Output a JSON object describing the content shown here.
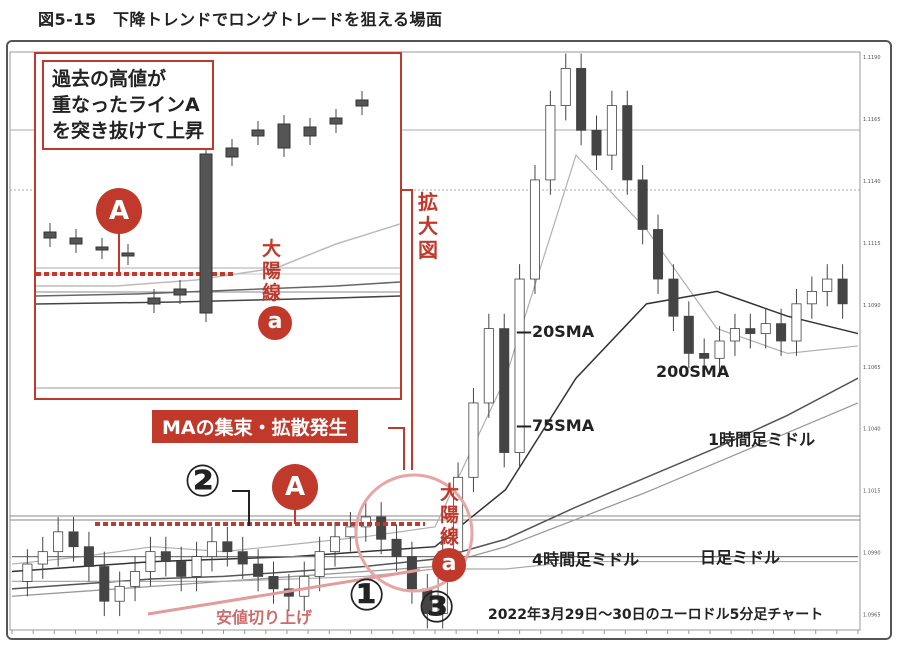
{
  "figure_title": "図5-15　下降トレンドでロングトレードを狙える場面",
  "callout_text": [
    "過去の高値が",
    "重なったラインA",
    "を突き抜けて上昇"
  ],
  "zoom_label": "拡大図",
  "ma_label": "MAの集束・拡散発生",
  "big_candle_label": "大陽線",
  "low_rise_label": "安値切り上げ",
  "marker_a": "A",
  "marker_small_a": "a",
  "marker_1": "①",
  "marker_2": "②",
  "marker_3": "③",
  "line_labels": {
    "sma20": "20SMA",
    "sma75": "75SMA",
    "sma200": "200SMA",
    "mid_1h": "1時間足ミドル",
    "mid_4h": "4時間足ミドル",
    "mid_daily": "日足ミドル"
  },
  "caption": "2022年3月29日～30日のユーロドル5分足チャート",
  "colors": {
    "accent_red": "#c0392b",
    "candle": "#4a4a4a",
    "grid": "#c8c8c8"
  },
  "chart_data": {
    "type": "line",
    "title": "",
    "xlabel": "",
    "ylabel": "",
    "x": [
      0,
      10,
      20,
      30,
      40,
      50,
      60,
      70,
      80,
      90,
      100,
      110,
      120
    ],
    "ylim": [
      1.096,
      1.119
    ],
    "series": [
      {
        "name": "20SMA",
        "values": [
          1.0985,
          1.0988,
          1.0992,
          1.099,
          1.0993,
          1.0996,
          1.1,
          1.106,
          1.115,
          1.112,
          1.108,
          1.107,
          1.1073
        ]
      },
      {
        "name": "75SMA",
        "values": [
          1.0982,
          1.0984,
          1.0986,
          1.0987,
          1.0988,
          1.099,
          1.0992,
          1.1015,
          1.106,
          1.109,
          1.1095,
          1.1085,
          1.1078
        ]
      },
      {
        "name": "200SMA",
        "values": [
          1.0975,
          1.0977,
          1.0979,
          1.098,
          1.0982,
          1.0984,
          1.0987,
          1.0995,
          1.1008,
          1.102,
          1.1032,
          1.1045,
          1.106
        ]
      },
      {
        "name": "1時間足ミドル",
        "values": [
          1.0972,
          1.0974,
          1.0976,
          1.0978,
          1.098,
          1.0982,
          1.0984,
          1.0992,
          1.1003,
          1.1014,
          1.1026,
          1.1038,
          1.105
        ]
      },
      {
        "name": "4時間足ミドル",
        "values": [
          1.0978,
          1.0978,
          1.0978,
          1.0978,
          1.0979,
          1.098,
          1.0983,
          1.0983,
          1.0986,
          1.0986,
          1.0986,
          1.0986,
          1.0986
        ]
      },
      {
        "name": "日足ミドル",
        "values": [
          1.0988,
          1.0988,
          1.0988,
          1.0988,
          1.0988,
          1.0988,
          1.0988,
          1.0988,
          1.0988,
          1.0988,
          1.0988,
          1.0988,
          1.0988
        ]
      }
    ],
    "price_path": [
      1.0978,
      1.0985,
      1.099,
      1.0998,
      1.0992,
      1.0984,
      1.097,
      1.0976,
      1.0982,
      1.099,
      1.0986,
      1.098,
      1.0988,
      1.0994,
      1.099,
      1.0985,
      1.098,
      1.0975,
      1.0972,
      1.098,
      1.099,
      1.0996,
      1.1,
      1.1004,
      1.0995,
      1.0988,
      1.0975,
      1.0965,
      1.099,
      1.102,
      1.105,
      1.108,
      1.103,
      1.11,
      1.114,
      1.117,
      1.1185,
      1.116,
      1.115,
      1.117,
      1.114,
      1.112,
      1.11,
      1.1085,
      1.107,
      1.1068,
      1.1075,
      1.108,
      1.1078,
      1.1082,
      1.1075,
      1.109,
      1.1095,
      1.11,
      1.109
    ],
    "y_tick_labels": [
      "1.1190",
      "1.1165",
      "1.1140",
      "1.1115",
      "1.1090",
      "1.1065",
      "1.1040",
      "1.1015",
      "1.0990",
      "1.0965"
    ],
    "annotations": [
      "A",
      "a",
      "①",
      "②",
      "③",
      "大陽線",
      "安値切り上げ",
      "MAの集束・拡散発生"
    ]
  }
}
